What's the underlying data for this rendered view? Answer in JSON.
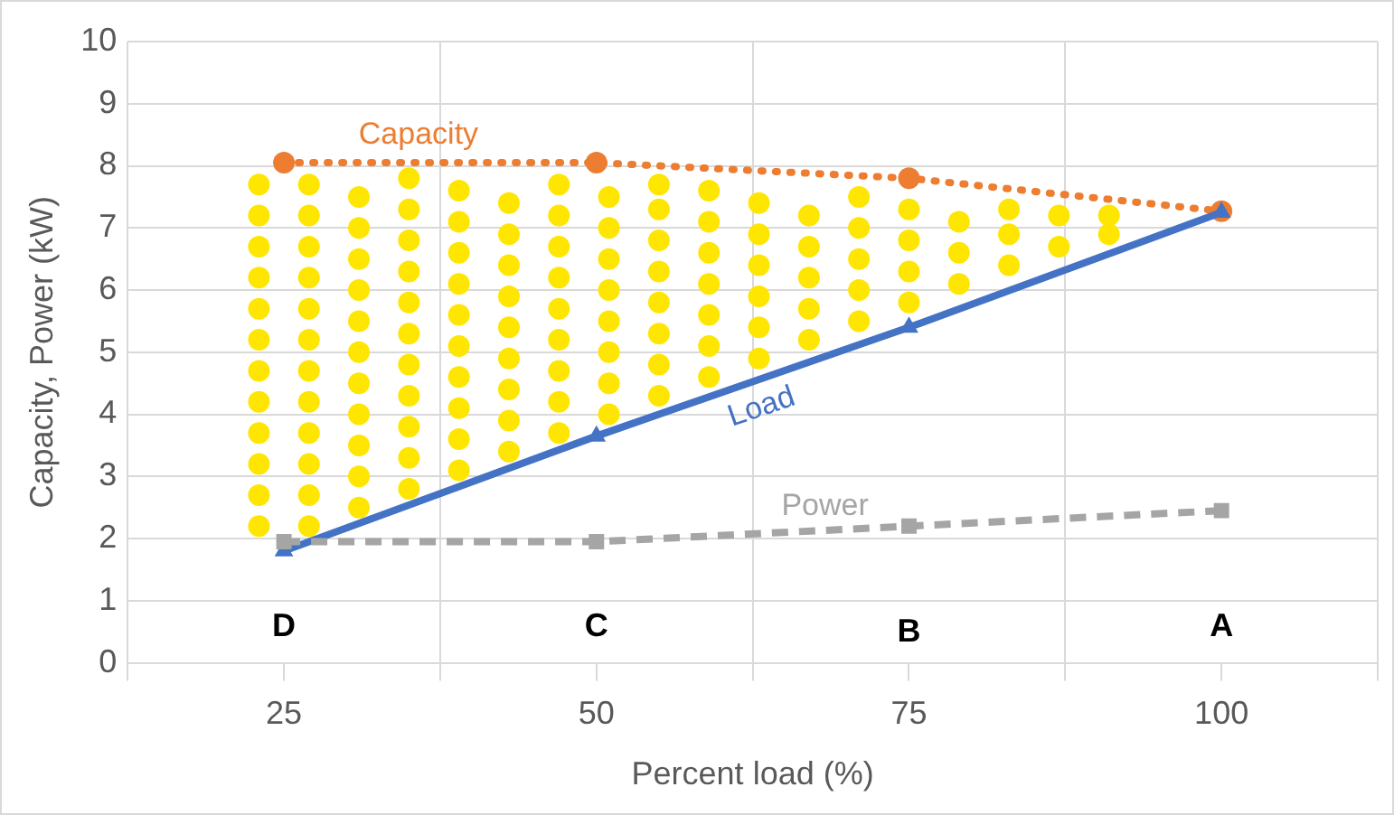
{
  "chart_data": {
    "type": "line",
    "xlabel": "Percent load (%)",
    "ylabel": "Capacity, Power (kW)",
    "xlim": [
      12.5,
      112.5
    ],
    "xticks": [
      {
        "value": 12.5,
        "label": null
      },
      25,
      {
        "value": 37.5,
        "label": null
      },
      50,
      {
        "value": 62.5,
        "label": null
      },
      75,
      {
        "value": 87.5,
        "label": null
      },
      100,
      {
        "value": 112.5,
        "label": null
      }
    ],
    "ylim": [
      0,
      10
    ],
    "yticks": [
      0,
      1,
      2,
      3,
      4,
      5,
      6,
      7,
      8,
      9,
      10
    ],
    "grid": true,
    "legend": false,
    "x": [
      25,
      50,
      75,
      100
    ],
    "series": [
      {
        "type": "scatter",
        "color": "#ffe600",
        "marker": "circle",
        "x": [
          23,
          23,
          23,
          23,
          23,
          23,
          23,
          23,
          23,
          23,
          23,
          23,
          27,
          27,
          27,
          27,
          27,
          27,
          27,
          27,
          27,
          27,
          27,
          27,
          31,
          31,
          31,
          31,
          31,
          31,
          31,
          31,
          31,
          31,
          31,
          35,
          35,
          35,
          35,
          35,
          35,
          35,
          35,
          35,
          35,
          35,
          39,
          39,
          39,
          39,
          39,
          39,
          39,
          39,
          39,
          39,
          43,
          43,
          43,
          43,
          43,
          43,
          43,
          43,
          43,
          47,
          47,
          47,
          47,
          47,
          47,
          47,
          47,
          47,
          51,
          51,
          51,
          51,
          51,
          51,
          51,
          51,
          55,
          55,
          55,
          55,
          55,
          55,
          55,
          55,
          59,
          59,
          59,
          59,
          59,
          59,
          59,
          63,
          63,
          63,
          63,
          63,
          63,
          67,
          67,
          67,
          67,
          67,
          71,
          71,
          71,
          71,
          71,
          75,
          75,
          75,
          75,
          79,
          79,
          79,
          83,
          83,
          83,
          87,
          87,
          91,
          91
        ],
        "values": [
          2.2,
          2.7,
          3.2,
          3.7,
          4.2,
          4.7,
          5.2,
          5.7,
          6.2,
          6.7,
          7.2,
          7.7,
          2.2,
          2.7,
          3.2,
          3.7,
          4.2,
          4.7,
          5.2,
          5.7,
          6.2,
          6.7,
          7.2,
          7.7,
          2.5,
          3,
          3.5,
          4,
          4.5,
          5,
          5.5,
          6,
          6.5,
          7,
          7.5,
          2.8,
          3.3,
          3.8,
          4.3,
          4.8,
          5.3,
          5.8,
          6.3,
          6.8,
          7.3,
          7.8,
          3.1,
          3.6,
          4.1,
          4.6,
          5.1,
          5.6,
          6.1,
          6.6,
          7.1,
          7.6,
          3.4,
          3.9,
          4.4,
          4.9,
          5.4,
          5.9,
          6.4,
          6.9,
          7.4,
          3.7,
          4.2,
          4.7,
          5.2,
          5.7,
          6.2,
          6.7,
          7.2,
          7.7,
          4,
          4.5,
          5,
          5.5,
          6,
          6.5,
          7,
          7.5,
          4.3,
          4.8,
          5.3,
          5.8,
          6.3,
          6.8,
          7.3,
          7.7,
          4.6,
          5.1,
          5.6,
          6.1,
          6.6,
          7.1,
          7.6,
          4.9,
          5.4,
          5.9,
          6.4,
          6.9,
          7.4,
          5.2,
          5.7,
          6.2,
          6.7,
          7.2,
          5.5,
          6,
          6.5,
          7,
          7.5,
          5.8,
          6.3,
          6.8,
          7.3,
          6.1,
          6.6,
          7.1,
          6.4,
          6.9,
          7.3,
          6.7,
          7.2,
          6.9,
          7.2
        ]
      },
      {
        "name": "Capacity",
        "color": "#ed7d31",
        "marker": "circle",
        "line_style": "dotted",
        "values": [
          8.05,
          8.05,
          7.8,
          7.27
        ]
      },
      {
        "name": "Load",
        "color": "#4472c4",
        "marker": "triangle",
        "line_style": "solid",
        "values": [
          1.8,
          3.65,
          5.4,
          7.25
        ]
      },
      {
        "name": "Power",
        "color": "#a5a5a5",
        "marker": "square",
        "line_style": "dashed",
        "values": [
          1.95,
          1.95,
          2.2,
          2.45
        ]
      }
    ],
    "annotations": [
      "D",
      "C",
      "B",
      "A"
    ]
  }
}
